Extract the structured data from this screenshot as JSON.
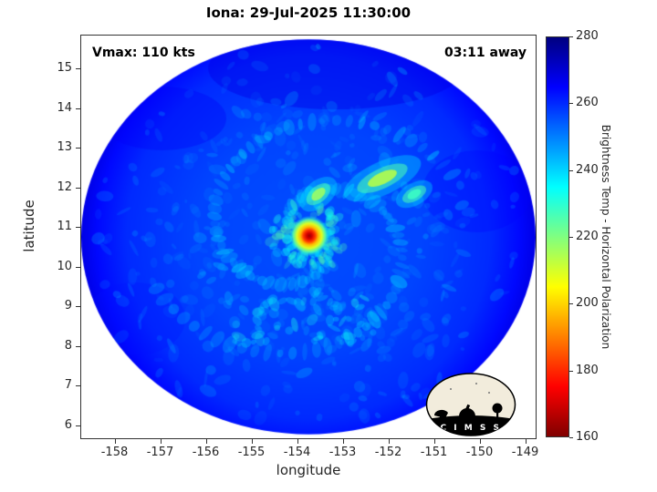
{
  "chart_data": {
    "type": "heatmap",
    "title": "Iona: 29-Jul-2025 11:30:00",
    "xlabel": "longitude",
    "ylabel": "latitude",
    "xlim": [
      -158.75,
      -148.75
    ],
    "ylim": [
      5.65,
      15.85
    ],
    "xticks": [
      -158,
      -157,
      -156,
      -155,
      -154,
      -153,
      -152,
      -151,
      -150,
      -149
    ],
    "yticks": [
      6,
      7,
      8,
      9,
      10,
      11,
      12,
      13,
      14,
      15
    ],
    "grid": false,
    "annotations": {
      "top_left": "Vmax: 110 kts",
      "top_right": "03:11 away"
    },
    "colorbar": {
      "label": "Brightness Temp - Horizontal Polarization",
      "min": 160,
      "max": 280,
      "ticks": [
        280,
        260,
        240,
        220,
        200,
        180,
        160
      ],
      "colormap": "jet reversed (high=dark blue, low=dark red)",
      "position": "right"
    },
    "swath": {
      "shape": "circle",
      "center_lon": -153.75,
      "center_lat": 10.75,
      "radius_deg": 5.0,
      "background_outside": "#ffffff"
    },
    "storm": {
      "name": "Iona",
      "datetime": "29-Jul-2025 11:30:00",
      "vmax_kts": 110,
      "time_offset": "03:11 away",
      "eye_lon": -153.75,
      "eye_lat": 10.8,
      "eye_min_temp_K": 163,
      "background_temp_K": 257
    },
    "convection_cells": [
      {
        "lon": -152.15,
        "lat": 12.25,
        "len_deg": 1.15,
        "wid_deg": 0.3,
        "angle_deg": -25,
        "min_temp_K": 213
      },
      {
        "lon": -153.55,
        "lat": 11.85,
        "len_deg": 0.6,
        "wid_deg": 0.24,
        "angle_deg": -40,
        "min_temp_K": 216
      },
      {
        "lon": -151.45,
        "lat": 11.85,
        "len_deg": 0.55,
        "wid_deg": 0.2,
        "angle_deg": -30,
        "min_temp_K": 228
      }
    ]
  },
  "logo": {
    "text": "C I M S S",
    "circle_color": "#f2ecdc",
    "band_color": "#000000"
  }
}
